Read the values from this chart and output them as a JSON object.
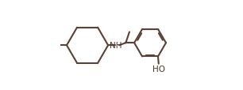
{
  "bg_color": "#ffffff",
  "line_color": "#4a3728",
  "text_color": "#4a3728",
  "line_width": 1.5,
  "bond_color": "#5c4033",
  "figsize": [
    3.06,
    1.15
  ],
  "dpi": 100
}
